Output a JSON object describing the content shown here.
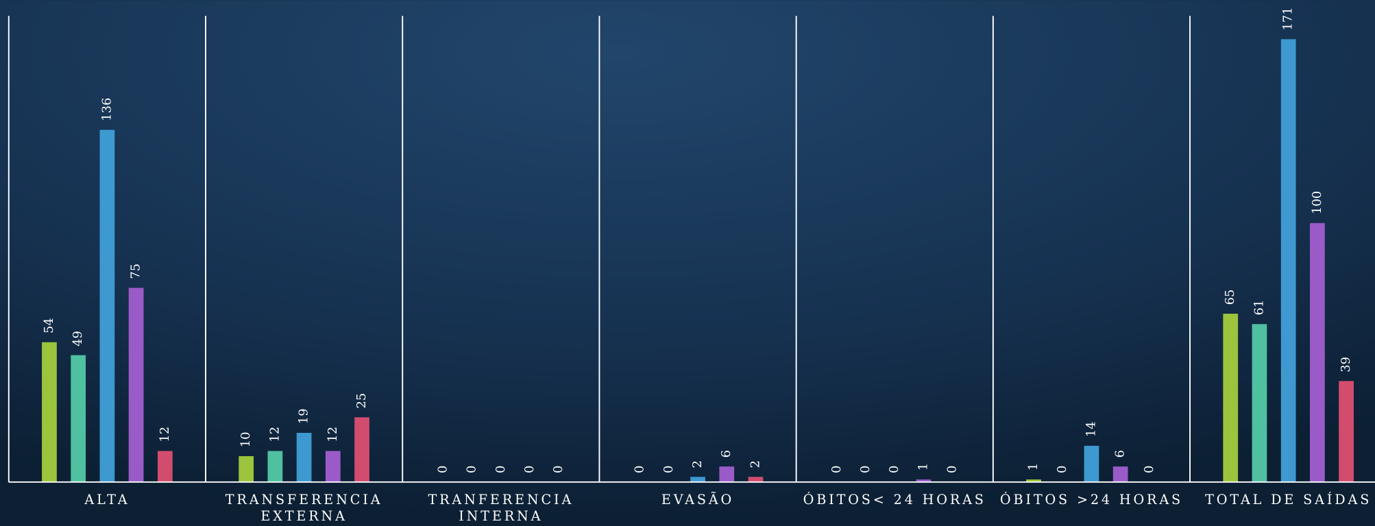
{
  "chart_data": {
    "type": "bar",
    "categories": [
      "ALTA",
      "TRANSFERENCIA EXTERNA",
      "TRANFERENCIA INTERNA",
      "EVASÃO",
      "ÓBITOS< 24 HORAS",
      "ÓBITOS >24 HORAS",
      "TOTAL DE SAÍDAS"
    ],
    "series": [
      {
        "color": "#9cc43c",
        "values": [
          54,
          10,
          0,
          0,
          0,
          1,
          65
        ]
      },
      {
        "color": "#4fc0a0",
        "values": [
          49,
          12,
          0,
          0,
          0,
          0,
          61
        ]
      },
      {
        "color": "#3d99d0",
        "values": [
          136,
          19,
          0,
          2,
          0,
          14,
          171
        ]
      },
      {
        "color": "#9a5bc8",
        "values": [
          75,
          12,
          0,
          6,
          1,
          6,
          100
        ]
      },
      {
        "color": "#d24c6e",
        "values": [
          12,
          25,
          0,
          2,
          0,
          0,
          39
        ]
      }
    ],
    "ylim": [
      0,
      180
    ]
  }
}
